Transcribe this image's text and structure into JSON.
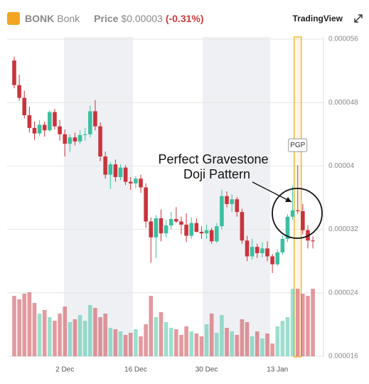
{
  "header": {
    "symbol": "BONK",
    "name": "Bonk",
    "price_label": "Price",
    "price": "$0.00003",
    "change": "(-0.31%)",
    "brand": "TradingView"
  },
  "chart_data": {
    "type": "candlestick",
    "categories": [
      null,
      null,
      null,
      null,
      null,
      null,
      null,
      null,
      null,
      null,
      "2 Dec",
      null,
      null,
      null,
      null,
      null,
      null,
      null,
      null,
      null,
      null,
      null,
      null,
      null,
      "16 Dec",
      null,
      null,
      null,
      null,
      null,
      null,
      null,
      null,
      null,
      null,
      null,
      null,
      null,
      "30 Dec",
      null,
      null,
      null,
      null,
      null,
      null,
      null,
      null,
      null,
      null,
      null,
      null,
      null,
      "13 Jan",
      null,
      null,
      null,
      null,
      null,
      null,
      null
    ],
    "open": [
      5.33e-05,
      5.02e-05,
      4.86e-05,
      4.64e-05,
      4.48e-05,
      4.41e-05,
      4.52e-05,
      4.45e-05,
      4.68e-05,
      4.5e-05,
      4.4e-05,
      4.28e-05,
      4.36e-05,
      4.31e-05,
      4.39e-05,
      4.4e-05,
      4.69e-05,
      4.5e-05,
      4.12e-05,
      3.89e-05,
      4.02e-05,
      3.86e-05,
      3.98e-05,
      3.8e-05,
      3.78e-05,
      3.84e-05,
      3.73e-05,
      3.3e-05,
      3.1e-05,
      3.34e-05,
      3.15e-05,
      3.25e-05,
      3.33e-05,
      3.3e-05,
      3.26e-05,
      3.12e-05,
      3.28e-05,
      3.17e-05,
      3.15e-05,
      3.19e-05,
      3.05e-05,
      3.24e-05,
      3.62e-05,
      3.52e-05,
      3.58e-05,
      3.42e-05,
      3.06e-05,
      2.86e-05,
      2.98e-05,
      2.9e-05,
      2.96e-05,
      2.86e-05,
      2.76e-05,
      2.91e-05,
      3.08e-05,
      3.36e-05,
      3.44e-05,
      3.43e-05,
      3.19e-05,
      3.06e-05
    ],
    "high": [
      5.38e-05,
      5.15e-05,
      4.95e-05,
      4.75e-05,
      4.56e-05,
      4.58e-05,
      4.56e-05,
      4.7e-05,
      4.72e-05,
      4.58e-05,
      4.46e-05,
      4.4e-05,
      4.42e-05,
      4.45e-05,
      4.48e-05,
      4.76e-05,
      4.83e-05,
      4.55e-05,
      4.18e-05,
      4.05e-05,
      4.08e-05,
      4.02e-05,
      4.01e-05,
      3.86e-05,
      3.87e-05,
      3.89e-05,
      3.78e-05,
      3.35e-05,
      3.38e-05,
      3.45e-05,
      3.32e-05,
      3.42e-05,
      3.48e-05,
      3.36e-05,
      3.4e-05,
      3.35e-05,
      3.34e-05,
      3.24e-05,
      3.26e-05,
      3.22e-05,
      3.28e-05,
      3.7e-05,
      3.68e-05,
      3.64e-05,
      3.61e-05,
      3.46e-05,
      3.12e-05,
      3.08e-05,
      3.02e-05,
      3.04e-05,
      3.05e-05,
      2.89e-05,
      2.95e-05,
      3.12e-05,
      3.39e-05,
      3.75e-05,
      4.01e-05,
      3.52e-05,
      3.25e-05,
      3.11e-05
    ],
    "low": [
      4.98e-05,
      4.82e-05,
      4.6e-05,
      4.42e-05,
      4.33e-05,
      4.38e-05,
      4.37e-05,
      4.43e-05,
      4.46e-05,
      4.32e-05,
      4.12e-05,
      4.18e-05,
      4.26e-05,
      4.28e-05,
      4.32e-05,
      4.36e-05,
      4.45e-05,
      4.06e-05,
      3.84e-05,
      3.71e-05,
      3.8e-05,
      3.82e-05,
      3.76e-05,
      3.7e-05,
      3.72e-05,
      3.66e-05,
      3.22e-05,
      2.78e-05,
      2.84e-05,
      3.05e-05,
      3.1e-05,
      3.2e-05,
      3.28e-05,
      3.14e-05,
      3.04e-05,
      3.08e-05,
      3.16e-05,
      3.08e-05,
      3.08e-05,
      3.02e-05,
      3.03e-05,
      3.2e-05,
      3.48e-05,
      3.42e-05,
      3.36e-05,
      3.02e-05,
      2.8e-05,
      2.82e-05,
      2.84e-05,
      2.85e-05,
      2.8e-05,
      2.65e-05,
      2.74e-05,
      2.88e-05,
      3.04e-05,
      3.32e-05,
      3.4e-05,
      3.14e-05,
      2.96e-05,
      2.96e-05
    ],
    "close": [
      5.02e-05,
      4.86e-05,
      4.64e-05,
      4.48e-05,
      4.41e-05,
      4.52e-05,
      4.45e-05,
      4.68e-05,
      4.5e-05,
      4.4e-05,
      4.28e-05,
      4.36e-05,
      4.31e-05,
      4.39e-05,
      4.4e-05,
      4.69e-05,
      4.5e-05,
      4.12e-05,
      3.89e-05,
      4.02e-05,
      3.86e-05,
      3.98e-05,
      3.8e-05,
      3.78e-05,
      3.84e-05,
      3.73e-05,
      3.3e-05,
      3.1e-05,
      3.34e-05,
      3.15e-05,
      3.25e-05,
      3.33e-05,
      3.3e-05,
      3.26e-05,
      3.12e-05,
      3.28e-05,
      3.17e-05,
      3.15e-05,
      3.19e-05,
      3.05e-05,
      3.24e-05,
      3.62e-05,
      3.52e-05,
      3.58e-05,
      3.42e-05,
      3.06e-05,
      2.86e-05,
      2.98e-05,
      2.9e-05,
      2.96e-05,
      2.86e-05,
      2.76e-05,
      2.91e-05,
      3.08e-05,
      3.36e-05,
      3.44e-05,
      3.43e-05,
      3.19e-05,
      3.06e-05,
      3.05e-05
    ],
    "volume": [
      85,
      80,
      88,
      90,
      75,
      60,
      65,
      55,
      50,
      60,
      70,
      48,
      52,
      58,
      50,
      72,
      68,
      55,
      60,
      40,
      38,
      35,
      30,
      33,
      38,
      28,
      45,
      85,
      55,
      62,
      48,
      40,
      38,
      30,
      42,
      35,
      32,
      28,
      45,
      60,
      33,
      58,
      40,
      35,
      30,
      52,
      48,
      28,
      35,
      25,
      32,
      18,
      42,
      50,
      55,
      95,
      95,
      88,
      85,
      95
    ],
    "up_color": "#3cbfa0",
    "down_color": "#c8343d",
    "ylim": [
      1.6e-05,
      5.6e-05
    ],
    "yticks": [
      1.6e-05,
      2.4e-05,
      3.2e-05,
      4e-05,
      4.8e-05,
      5.6e-05
    ],
    "grid": true,
    "highlight": {
      "index": 56,
      "label": "PGP"
    },
    "annotation": [
      "Perfect Gravestone",
      "Doji Pattern"
    ]
  }
}
